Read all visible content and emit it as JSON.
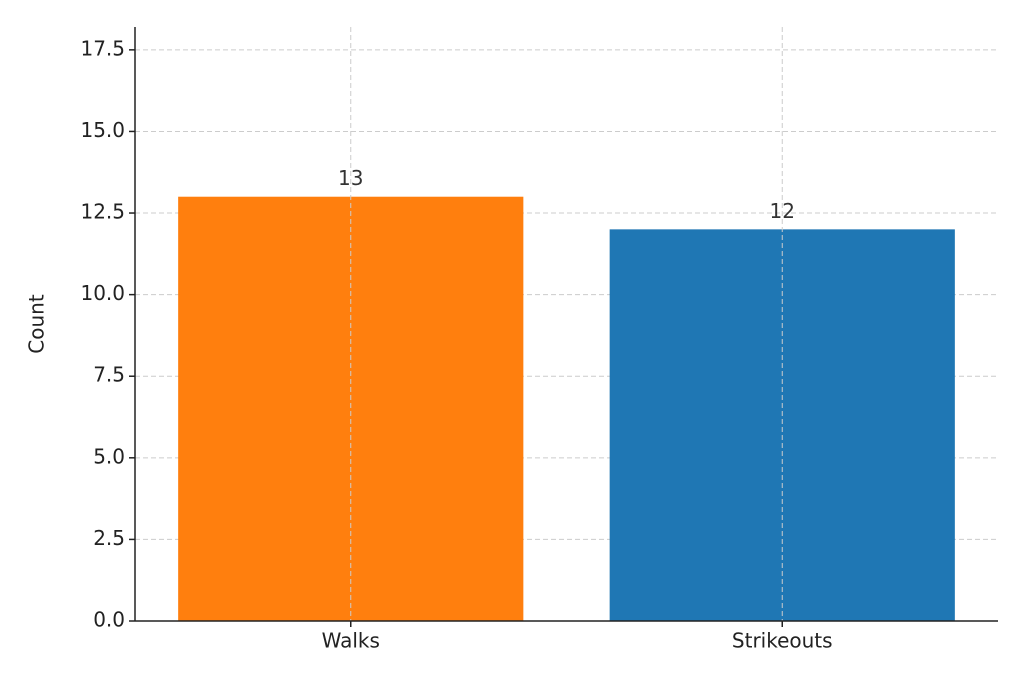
{
  "chart_data": {
    "type": "bar",
    "y_label": "Count",
    "categories": [
      "Walks",
      "Strikeouts"
    ],
    "values": [
      13,
      12
    ],
    "colors": [
      "#ff7f0e",
      "#1f77b4"
    ],
    "ylim": [
      0,
      18.2
    ],
    "yticks": [
      {
        "value": 0,
        "label": "0.0"
      },
      2.5,
      {
        "value": 5,
        "label": "5.0"
      },
      7.5,
      {
        "value": 10,
        "label": "10.0"
      },
      12.5,
      {
        "value": 15,
        "label": "15.0"
      },
      17.5
    ],
    "grid": true
  }
}
